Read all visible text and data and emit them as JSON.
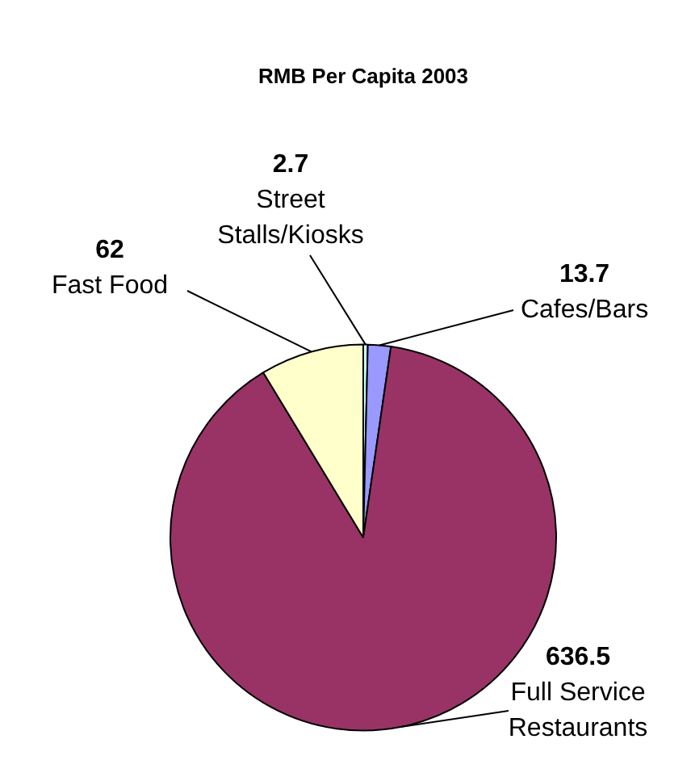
{
  "chart_data": {
    "type": "pie",
    "title": "RMB Per Capita 2003",
    "categories": [
      "Street Stalls/Kiosks",
      "Cafes/Bars",
      "Full Service Restaurants",
      "Fast Food"
    ],
    "values": [
      2.7,
      13.7,
      636.5,
      62
    ],
    "colors": [
      "#ccffff",
      "#9999ff",
      "#993366",
      "#ffffcc"
    ],
    "data_labels": true,
    "legend": false
  }
}
